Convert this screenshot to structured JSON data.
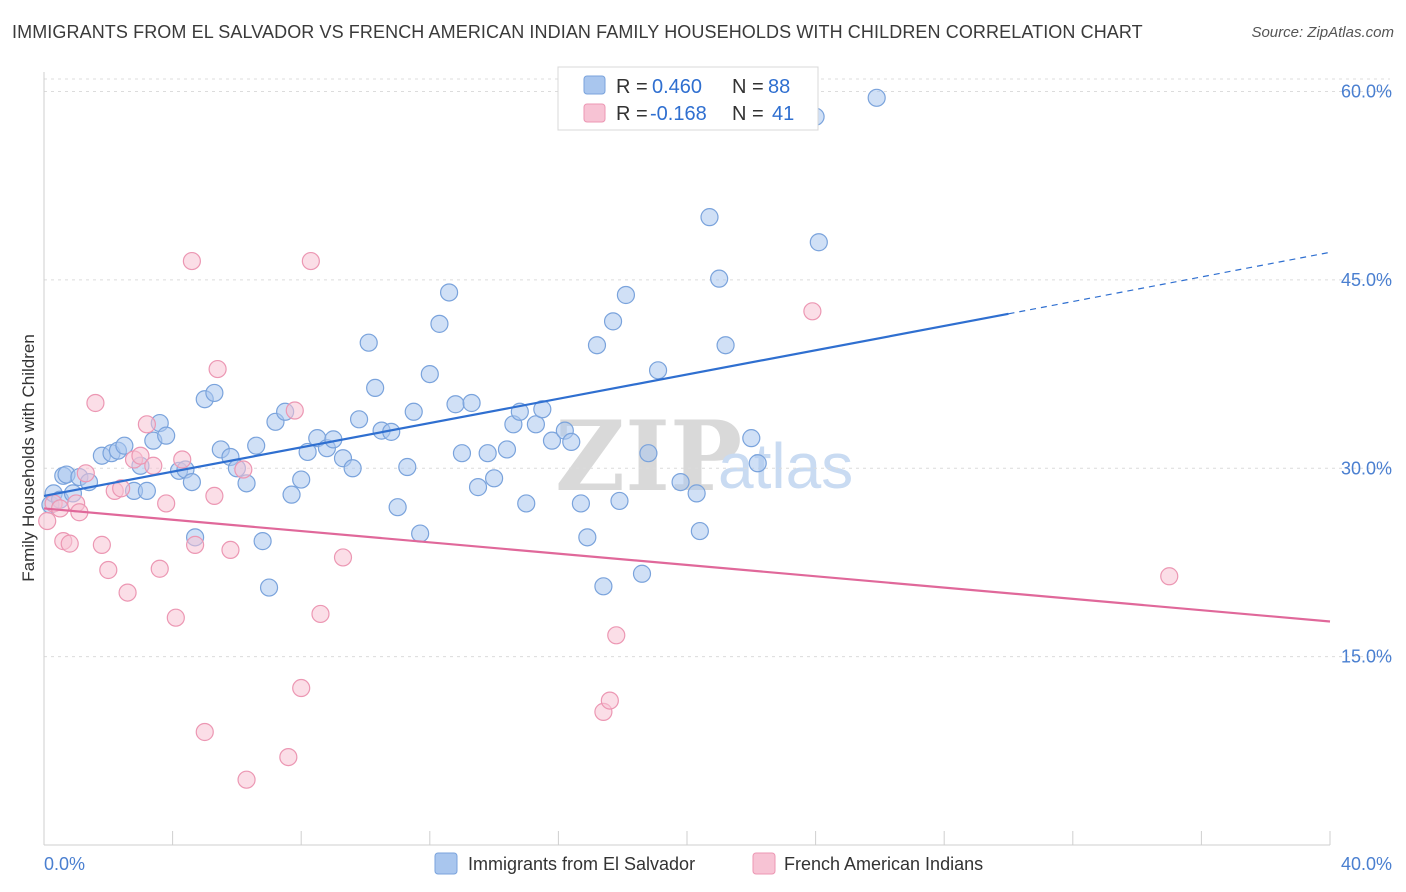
{
  "title": "IMMIGRANTS FROM EL SALVADOR VS FRENCH AMERICAN INDIAN FAMILY HOUSEHOLDS WITH CHILDREN CORRELATION CHART",
  "source": "Source: ZipAtlas.com",
  "watermark": {
    "zip": "ZIP",
    "atlas": "atlas"
  },
  "legend": {
    "r_label": "R =",
    "n_label": "N =",
    "rows": [
      {
        "r": "0.460",
        "n": "88"
      },
      {
        "r": "-0.168",
        "n": "41"
      }
    ]
  },
  "chart_data": {
    "type": "scatter",
    "title": "IMMIGRANTS FROM EL SALVADOR VS FRENCH AMERICAN INDIAN FAMILY HOUSEHOLDS WITH CHILDREN CORRELATION CHART",
    "xlabel": "",
    "ylabel": "Family Households with Children",
    "xlim": [
      0,
      40
    ],
    "ylim": [
      0,
      61
    ],
    "x_tick_labels": [
      "0.0%",
      "40.0%"
    ],
    "y_ticks": [
      15,
      30,
      45,
      60
    ],
    "y_tick_labels": [
      "15.0%",
      "30.0%",
      "45.0%",
      "60.0%"
    ],
    "grid": "horizontal dashed",
    "legend_position": "top-center",
    "series": [
      {
        "name": "Immigrants from El Salvador",
        "color": "#a9c6ee",
        "stroke": "#7aa3dc",
        "trend": {
          "x0": 0.0,
          "y0": 27.8,
          "x1": 30.0,
          "y1": 42.3,
          "dashed_to_x": 40.0,
          "dashed_to_y": 47.2,
          "color": "#2f6fd0"
        },
        "points": [
          [
            0.2,
            27.1
          ],
          [
            0.3,
            28.0
          ],
          [
            0.5,
            27.5
          ],
          [
            0.6,
            29.4
          ],
          [
            0.7,
            29.5
          ],
          [
            0.9,
            28.0
          ],
          [
            1.1,
            29.3
          ],
          [
            1.4,
            28.9
          ],
          [
            1.8,
            31.0
          ],
          [
            2.1,
            31.2
          ],
          [
            2.3,
            31.4
          ],
          [
            2.5,
            31.8
          ],
          [
            2.8,
            28.2
          ],
          [
            3.0,
            30.2
          ],
          [
            3.2,
            28.2
          ],
          [
            3.4,
            32.2
          ],
          [
            3.6,
            33.6
          ],
          [
            3.8,
            32.6
          ],
          [
            4.2,
            29.8
          ],
          [
            4.4,
            29.9
          ],
          [
            4.6,
            28.9
          ],
          [
            4.7,
            24.5
          ],
          [
            5.0,
            35.5
          ],
          [
            5.3,
            36.0
          ],
          [
            5.5,
            31.5
          ],
          [
            5.8,
            30.9
          ],
          [
            6.0,
            30.0
          ],
          [
            6.3,
            28.8
          ],
          [
            6.6,
            31.8
          ],
          [
            6.8,
            24.2
          ],
          [
            7.0,
            20.5
          ],
          [
            7.2,
            33.7
          ],
          [
            7.5,
            34.5
          ],
          [
            7.7,
            27.9
          ],
          [
            8.0,
            29.1
          ],
          [
            8.2,
            31.3
          ],
          [
            8.5,
            32.4
          ],
          [
            8.8,
            31.6
          ],
          [
            9.0,
            32.3
          ],
          [
            9.3,
            30.8
          ],
          [
            9.6,
            30.0
          ],
          [
            9.8,
            33.9
          ],
          [
            10.1,
            40.0
          ],
          [
            10.3,
            36.4
          ],
          [
            10.5,
            33.0
          ],
          [
            10.8,
            32.9
          ],
          [
            11.0,
            26.9
          ],
          [
            11.3,
            30.1
          ],
          [
            11.5,
            34.5
          ],
          [
            11.7,
            24.8
          ],
          [
            12.0,
            37.5
          ],
          [
            12.3,
            41.5
          ],
          [
            12.6,
            44.0
          ],
          [
            12.8,
            35.1
          ],
          [
            13.0,
            31.2
          ],
          [
            13.3,
            35.2
          ],
          [
            13.5,
            28.5
          ],
          [
            13.8,
            31.2
          ],
          [
            14.0,
            29.2
          ],
          [
            14.4,
            31.5
          ],
          [
            14.6,
            33.5
          ],
          [
            14.8,
            34.5
          ],
          [
            15.0,
            27.2
          ],
          [
            15.3,
            33.5
          ],
          [
            15.5,
            34.7
          ],
          [
            15.8,
            32.2
          ],
          [
            16.2,
            33.0
          ],
          [
            16.4,
            32.1
          ],
          [
            16.7,
            27.2
          ],
          [
            16.9,
            24.5
          ],
          [
            17.2,
            39.8
          ],
          [
            17.4,
            20.6
          ],
          [
            17.7,
            41.7
          ],
          [
            17.9,
            27.4
          ],
          [
            18.1,
            43.8
          ],
          [
            18.6,
            21.6
          ],
          [
            18.8,
            31.2
          ],
          [
            19.1,
            37.8
          ],
          [
            19.8,
            28.9
          ],
          [
            20.3,
            28.0
          ],
          [
            20.4,
            25.0
          ],
          [
            20.7,
            50.0
          ],
          [
            21.0,
            45.1
          ],
          [
            21.2,
            39.8
          ],
          [
            22.0,
            32.4
          ],
          [
            22.2,
            30.4
          ],
          [
            24.0,
            58.0
          ],
          [
            24.1,
            48.0
          ],
          [
            25.9,
            59.5
          ]
        ]
      },
      {
        "name": "French American Indians",
        "color": "#f7c3d4",
        "stroke": "#ec97b3",
        "trend": {
          "x0": 0.0,
          "y0": 26.8,
          "x1": 40.0,
          "y1": 17.8,
          "color": "#e0689a"
        },
        "points": [
          [
            0.1,
            25.8
          ],
          [
            0.3,
            27.2
          ],
          [
            0.5,
            26.8
          ],
          [
            0.6,
            24.2
          ],
          [
            0.8,
            24.0
          ],
          [
            1.0,
            27.2
          ],
          [
            1.1,
            26.5
          ],
          [
            1.3,
            29.6
          ],
          [
            1.6,
            35.2
          ],
          [
            1.8,
            23.9
          ],
          [
            2.0,
            21.9
          ],
          [
            2.2,
            28.2
          ],
          [
            2.4,
            28.4
          ],
          [
            2.6,
            20.1
          ],
          [
            2.8,
            30.7
          ],
          [
            3.0,
            31.0
          ],
          [
            3.2,
            33.5
          ],
          [
            3.4,
            30.2
          ],
          [
            3.6,
            22.0
          ],
          [
            3.8,
            27.2
          ],
          [
            4.1,
            18.1
          ],
          [
            4.3,
            30.7
          ],
          [
            4.6,
            46.5
          ],
          [
            4.7,
            23.9
          ],
          [
            5.0,
            9.0
          ],
          [
            5.3,
            27.8
          ],
          [
            5.4,
            37.9
          ],
          [
            5.8,
            23.5
          ],
          [
            6.2,
            29.9
          ],
          [
            6.3,
            5.2
          ],
          [
            7.6,
            7.0
          ],
          [
            7.8,
            34.6
          ],
          [
            8.0,
            12.5
          ],
          [
            8.3,
            46.5
          ],
          [
            8.6,
            18.4
          ],
          [
            9.3,
            22.9
          ],
          [
            17.4,
            10.6
          ],
          [
            17.6,
            11.5
          ],
          [
            17.8,
            16.7
          ],
          [
            23.9,
            42.5
          ],
          [
            35.0,
            21.4
          ]
        ]
      }
    ]
  },
  "bottom_legend": [
    "Immigrants from El Salvador",
    "French American Indians"
  ]
}
